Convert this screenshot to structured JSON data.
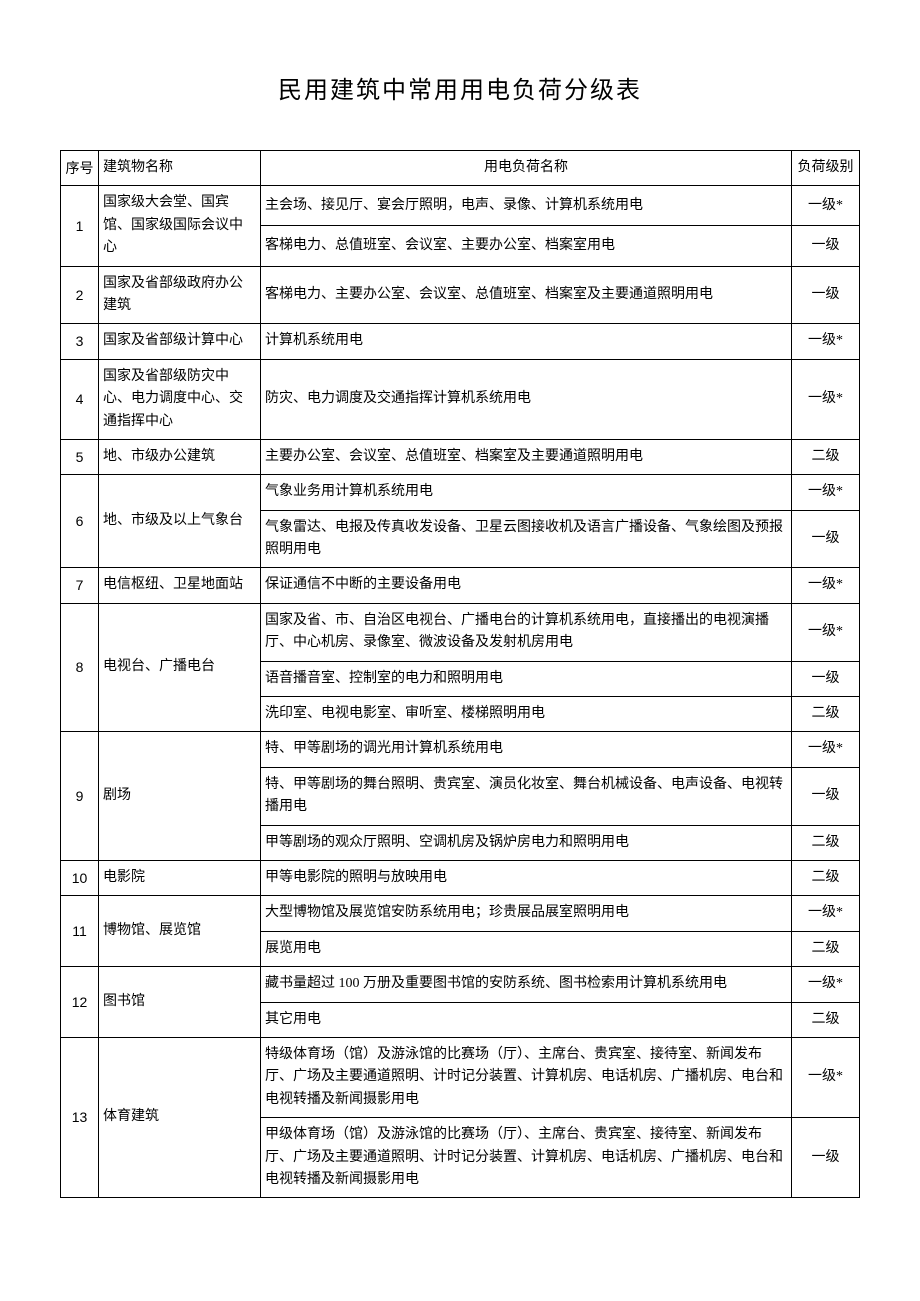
{
  "title": "民用建筑中常用用电负荷分级表",
  "headers": {
    "num": "序号",
    "building": "建筑物名称",
    "load": "用电负荷名称",
    "level": "负荷级别"
  },
  "rows": [
    {
      "num": "1",
      "building": "国家级大会堂、国宾馆、国家级国际会议中心",
      "loads": [
        {
          "text": "主会场、接见厅、宴会厅照明，电声、录像、计算机系统用电",
          "level": "一级*"
        },
        {
          "text": "客梯电力、总值班室、会议室、主要办公室、档案室用电",
          "level": "一级"
        }
      ]
    },
    {
      "num": "2",
      "building": "国家及省部级政府办公建筑",
      "loads": [
        {
          "text": "客梯电力、主要办公室、会议室、总值班室、档案室及主要通道照明用电",
          "level": "一级"
        }
      ]
    },
    {
      "num": "3",
      "building": "国家及省部级计算中心",
      "loads": [
        {
          "text": "计算机系统用电",
          "level": "一级*"
        }
      ]
    },
    {
      "num": "4",
      "building": "国家及省部级防灾中心、电力调度中心、交通指挥中心",
      "loads": [
        {
          "text": "防灾、电力调度及交通指挥计算机系统用电",
          "level": "一级*"
        }
      ]
    },
    {
      "num": "5",
      "building": "地、市级办公建筑",
      "loads": [
        {
          "text": "主要办公室、会议室、总值班室、档案室及主要通道照明用电",
          "level": "二级"
        }
      ]
    },
    {
      "num": "6",
      "building": "地、市级及以上气象台",
      "loads": [
        {
          "text": "气象业务用计算机系统用电",
          "level": "一级*"
        },
        {
          "text": "气象雷达、电报及传真收发设备、卫星云图接收机及语言广播设备、气象绘图及预报照明用电",
          "level": "一级"
        }
      ]
    },
    {
      "num": "7",
      "building": "电信枢纽、卫星地面站",
      "loads": [
        {
          "text": "保证通信不中断的主要设备用电",
          "level": "一级*"
        }
      ]
    },
    {
      "num": "8",
      "building": "电视台、广播电台",
      "loads": [
        {
          "text": "国家及省、市、自治区电视台、广播电台的计算机系统用电，直接播出的电视演播厅、中心机房、录像室、微波设备及发射机房用电",
          "level": "一级*"
        },
        {
          "text": "语音播音室、控制室的电力和照明用电",
          "level": "一级"
        },
        {
          "text": "洗印室、电视电影室、审听室、楼梯照明用电",
          "level": "二级"
        }
      ]
    },
    {
      "num": "9",
      "building": "剧场",
      "loads": [
        {
          "text": "特、甲等剧场的调光用计算机系统用电",
          "level": "一级*"
        },
        {
          "text": "特、甲等剧场的舞台照明、贵宾室、演员化妆室、舞台机械设备、电声设备、电视转播用电",
          "level": "一级"
        },
        {
          "text": "甲等剧场的观众厅照明、空调机房及锅炉房电力和照明用电",
          "level": "二级"
        }
      ]
    },
    {
      "num": "10",
      "building": "电影院",
      "loads": [
        {
          "text": "甲等电影院的照明与放映用电",
          "level": "二级"
        }
      ]
    },
    {
      "num": "11",
      "building": "博物馆、展览馆",
      "loads": [
        {
          "text": "大型博物馆及展览馆安防系统用电；珍贵展品展室照明用电",
          "level": "一级*"
        },
        {
          "text": "展览用电",
          "level": "二级"
        }
      ]
    },
    {
      "num": "12",
      "building": "图书馆",
      "loads": [
        {
          "text": "藏书量超过 100 万册及重要图书馆的安防系统、图书检索用计算机系统用电",
          "level": "一级*"
        },
        {
          "text": "其它用电",
          "level": "二级"
        }
      ]
    },
    {
      "num": "13",
      "building": "体育建筑",
      "loads": [
        {
          "text": "特级体育场（馆）及游泳馆的比赛场（厅）、主席台、贵宾室、接待室、新闻发布厅、广场及主要通道照明、计时记分装置、计算机房、电话机房、广播机房、电台和电视转播及新闻摄影用电",
          "level": "一级*"
        },
        {
          "text": "甲级体育场（馆）及游泳馆的比赛场（厅）、主席台、贵宾室、接待室、新闻发布厅、广场及主要通道照明、计时记分装置、计算机房、电话机房、广播机房、电台和电视转播及新闻摄影用电",
          "level": "一级"
        }
      ]
    }
  ]
}
